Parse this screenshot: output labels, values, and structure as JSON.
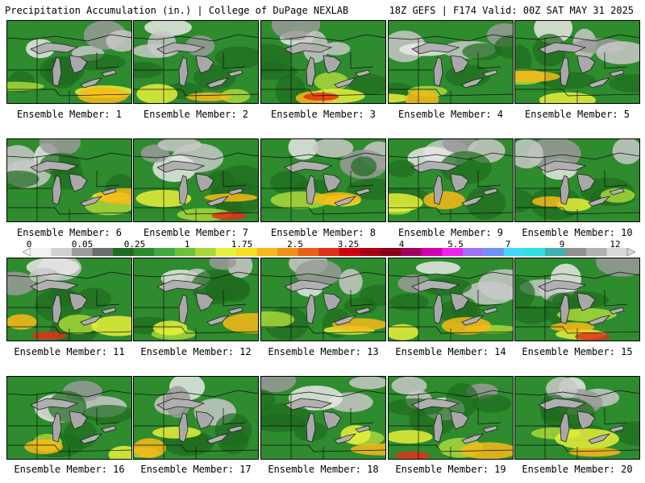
{
  "header": {
    "left": "Precipitation Accumulation (in.) | College of DuPage NEXLAB",
    "right": "18Z GEFS | F174 Valid: 00Z SAT MAY 31 2025"
  },
  "panels": [
    {
      "label": "Ensemble Member: 1"
    },
    {
      "label": "Ensemble Member: 2"
    },
    {
      "label": "Ensemble Member: 3"
    },
    {
      "label": "Ensemble Member: 4"
    },
    {
      "label": "Ensemble Member: 5"
    },
    {
      "label": "Ensemble Member: 6"
    },
    {
      "label": "Ensemble Member: 7"
    },
    {
      "label": "Ensemble Member: 8"
    },
    {
      "label": "Ensemble Member: 9"
    },
    {
      "label": "Ensemble Member: 10"
    },
    {
      "label": "Ensemble Member: 11"
    },
    {
      "label": "Ensemble Member: 12"
    },
    {
      "label": "Ensemble Member: 13"
    },
    {
      "label": "Ensemble Member: 14"
    },
    {
      "label": "Ensemble Member: 15"
    },
    {
      "label": "Ensemble Member: 16"
    },
    {
      "label": "Ensemble Member: 17"
    },
    {
      "label": "Ensemble Member: 18"
    },
    {
      "label": "Ensemble Member: 19"
    },
    {
      "label": "Ensemble Member: 20"
    }
  ],
  "colorbar": {
    "ticks": [
      "0",
      "0.05",
      "0.25",
      "1",
      "1.75",
      "2.5",
      "3.25",
      "4",
      "5.5",
      "7",
      "9",
      "12"
    ],
    "colors": [
      "#f2f2f2",
      "#d0d0d0",
      "#9c9c9c",
      "#6c6c6c",
      "#1f6b1f",
      "#2b8a2b",
      "#3fa83f",
      "#6cc03a",
      "#a8d83a",
      "#e8f03a",
      "#f8e020",
      "#f8b818",
      "#f09018",
      "#e86018",
      "#e03018",
      "#d00010",
      "#a80010",
      "#880018",
      "#a00060",
      "#d000b0",
      "#f020f0",
      "#a070f8",
      "#7090f8",
      "#40d8f8",
      "#30e0e0",
      "#40b0b0",
      "#909090",
      "#b0b0b0",
      "#d8d8d8"
    ]
  }
}
